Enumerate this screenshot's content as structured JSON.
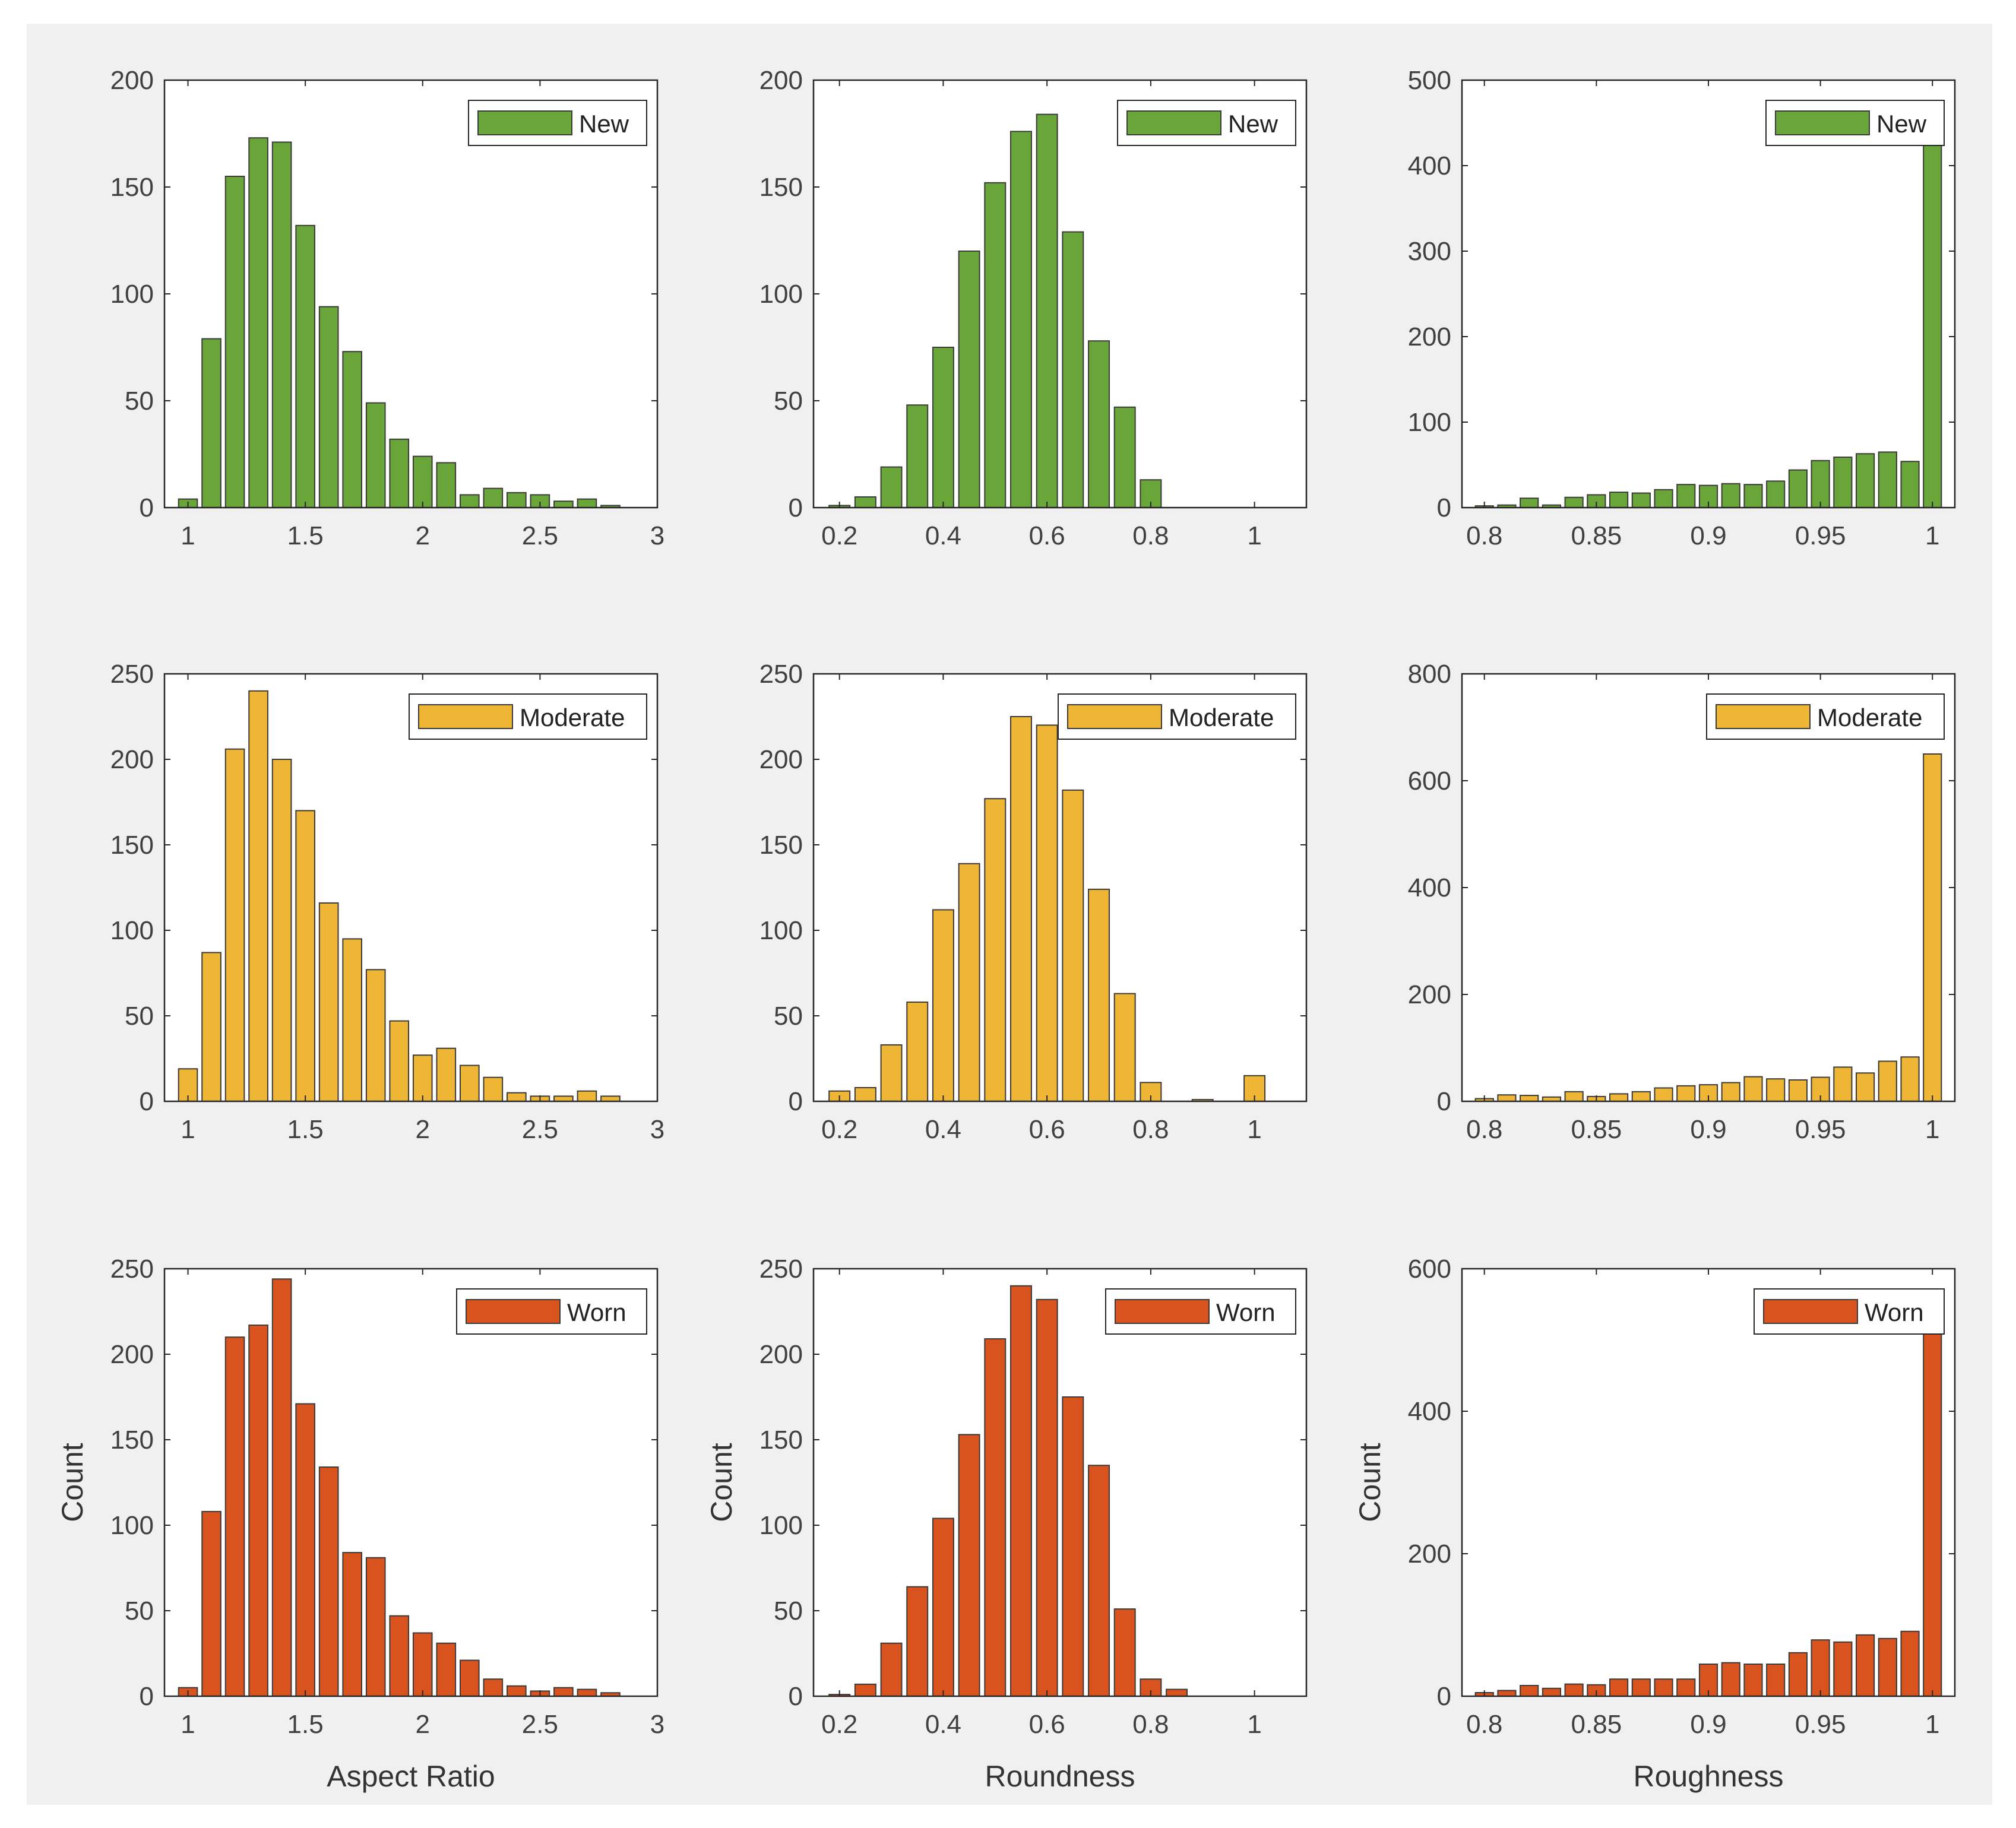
{
  "figure": {
    "background": "#f0f0f0"
  },
  "colors": {
    "new": "#6aa53a",
    "moderate": "#efb534",
    "worn": "#d9531e",
    "edge": "#3a3a3a",
    "axis": "#262626",
    "tick_text": "#404040"
  },
  "chart_data": [
    {
      "id": "ar-new",
      "type": "bar",
      "row": 0,
      "col": 0,
      "legend": "New",
      "legend_position": "top-right",
      "color": "new",
      "xlim": [
        0.9,
        3.0
      ],
      "ylim": [
        0,
        200
      ],
      "xticks": [
        1,
        1.5,
        2,
        2.5,
        3
      ],
      "xtick_labels": [
        "1",
        "1.5",
        "2",
        "2.5",
        "3"
      ],
      "yticks": [
        0,
        50,
        100,
        150,
        200
      ],
      "ytick_labels": [
        "0",
        "50",
        "100",
        "150",
        "200"
      ],
      "bin_width": 0.1,
      "bin_centers": [
        1.0,
        1.1,
        1.2,
        1.3,
        1.4,
        1.5,
        1.6,
        1.7,
        1.8,
        1.9,
        2.0,
        2.1,
        2.2,
        2.3,
        2.4,
        2.5,
        2.6,
        2.7,
        2.8
      ],
      "values": [
        4,
        79,
        155,
        173,
        171,
        132,
        94,
        73,
        49,
        32,
        24,
        21,
        6,
        9,
        7,
        6,
        3,
        4,
        1
      ],
      "xlabel": "",
      "ylabel": ""
    },
    {
      "id": "rd-new",
      "type": "bar",
      "row": 0,
      "col": 1,
      "legend": "New",
      "legend_position": "top-right",
      "color": "new",
      "xlim": [
        0.15,
        1.1
      ],
      "ylim": [
        0,
        200
      ],
      "xticks": [
        0.2,
        0.4,
        0.6,
        0.8,
        1
      ],
      "xtick_labels": [
        "0.2",
        "0.4",
        "0.6",
        "0.8",
        "1"
      ],
      "yticks": [
        0,
        50,
        100,
        150,
        200
      ],
      "ytick_labels": [
        "0",
        "50",
        "100",
        "150",
        "200"
      ],
      "bin_width": 0.05,
      "bin_centers": [
        0.2,
        0.25,
        0.3,
        0.35,
        0.4,
        0.45,
        0.5,
        0.55,
        0.6,
        0.65,
        0.7,
        0.75,
        0.8
      ],
      "values": [
        1,
        5,
        19,
        48,
        75,
        120,
        152,
        176,
        184,
        129,
        78,
        47,
        13
      ],
      "xlabel": "",
      "ylabel": ""
    },
    {
      "id": "rg-new",
      "type": "bar",
      "row": 0,
      "col": 2,
      "legend": "New",
      "legend_position": "top-right",
      "color": "new",
      "xlim": [
        0.79,
        1.01
      ],
      "ylim": [
        0,
        500
      ],
      "xticks": [
        0.8,
        0.85,
        0.9,
        0.95,
        1
      ],
      "xtick_labels": [
        "0.8",
        "0.85",
        "0.9",
        "0.95",
        "1"
      ],
      "yticks": [
        0,
        100,
        200,
        300,
        400,
        500
      ],
      "ytick_labels": [
        "0",
        "100",
        "200",
        "300",
        "400",
        "500"
      ],
      "bin_width": 0.01,
      "bin_centers": [
        0.8,
        0.81,
        0.82,
        0.83,
        0.84,
        0.85,
        0.86,
        0.87,
        0.88,
        0.89,
        0.9,
        0.91,
        0.92,
        0.93,
        0.94,
        0.95,
        0.96,
        0.97,
        0.98,
        0.99,
        1.0
      ],
      "values": [
        2,
        3,
        11,
        3,
        12,
        15,
        18,
        17,
        21,
        27,
        26,
        28,
        27,
        31,
        44,
        55,
        59,
        63,
        65,
        54,
        428
      ],
      "xlabel": "",
      "ylabel": ""
    },
    {
      "id": "ar-mod",
      "type": "bar",
      "row": 1,
      "col": 0,
      "legend": "Moderate",
      "legend_position": "top-right",
      "color": "moderate",
      "xlim": [
        0.9,
        3.0
      ],
      "ylim": [
        0,
        250
      ],
      "xticks": [
        1,
        1.5,
        2,
        2.5,
        3
      ],
      "xtick_labels": [
        "1",
        "1.5",
        "2",
        "2.5",
        "3"
      ],
      "yticks": [
        0,
        50,
        100,
        150,
        200,
        250
      ],
      "ytick_labels": [
        "0",
        "50",
        "100",
        "150",
        "200",
        "250"
      ],
      "bin_width": 0.1,
      "bin_centers": [
        1.0,
        1.1,
        1.2,
        1.3,
        1.4,
        1.5,
        1.6,
        1.7,
        1.8,
        1.9,
        2.0,
        2.1,
        2.2,
        2.3,
        2.4,
        2.5,
        2.6,
        2.7,
        2.8
      ],
      "values": [
        19,
        87,
        206,
        240,
        200,
        170,
        116,
        95,
        77,
        47,
        27,
        31,
        21,
        14,
        5,
        3,
        3,
        6,
        3
      ],
      "xlabel": "",
      "ylabel": ""
    },
    {
      "id": "rd-mod",
      "type": "bar",
      "row": 1,
      "col": 1,
      "legend": "Moderate",
      "legend_position": "top-right",
      "color": "moderate",
      "xlim": [
        0.15,
        1.1
      ],
      "ylim": [
        0,
        250
      ],
      "xticks": [
        0.2,
        0.4,
        0.6,
        0.8,
        1
      ],
      "xtick_labels": [
        "0.2",
        "0.4",
        "0.6",
        "0.8",
        "1"
      ],
      "yticks": [
        0,
        50,
        100,
        150,
        200,
        250
      ],
      "ytick_labels": [
        "0",
        "50",
        "100",
        "150",
        "200",
        "250"
      ],
      "bin_width": 0.05,
      "bin_centers": [
        0.2,
        0.25,
        0.3,
        0.35,
        0.4,
        0.45,
        0.5,
        0.55,
        0.6,
        0.65,
        0.7,
        0.75,
        0.8,
        0.85,
        0.9,
        0.95,
        1.0
      ],
      "values": [
        6,
        8,
        33,
        58,
        112,
        139,
        177,
        225,
        220,
        182,
        124,
        63,
        11,
        0,
        1,
        0,
        15
      ],
      "xlabel": "",
      "ylabel": ""
    },
    {
      "id": "rg-mod",
      "type": "bar",
      "row": 1,
      "col": 2,
      "legend": "Moderate",
      "legend_position": "top-right",
      "color": "moderate",
      "xlim": [
        0.79,
        1.01
      ],
      "ylim": [
        0,
        800
      ],
      "xticks": [
        0.8,
        0.85,
        0.9,
        0.95,
        1
      ],
      "xtick_labels": [
        "0.8",
        "0.85",
        "0.9",
        "0.95",
        "1"
      ],
      "yticks": [
        0,
        200,
        400,
        600,
        800
      ],
      "ytick_labels": [
        "0",
        "200",
        "400",
        "600",
        "800"
      ],
      "bin_width": 0.01,
      "bin_centers": [
        0.8,
        0.81,
        0.82,
        0.83,
        0.84,
        0.85,
        0.86,
        0.87,
        0.88,
        0.89,
        0.9,
        0.91,
        0.92,
        0.93,
        0.94,
        0.95,
        0.96,
        0.97,
        0.98,
        0.99,
        1.0
      ],
      "values": [
        5,
        12,
        11,
        8,
        18,
        9,
        14,
        18,
        25,
        29,
        31,
        35,
        46,
        42,
        40,
        45,
        64,
        53,
        75,
        83,
        650
      ],
      "xlabel": "",
      "ylabel": ""
    },
    {
      "id": "ar-worn",
      "type": "bar",
      "row": 2,
      "col": 0,
      "legend": "Worn",
      "legend_position": "top-right",
      "color": "worn",
      "xlim": [
        0.9,
        3.0
      ],
      "ylim": [
        0,
        250
      ],
      "xticks": [
        1,
        1.5,
        2,
        2.5,
        3
      ],
      "xtick_labels": [
        "1",
        "1.5",
        "2",
        "2.5",
        "3"
      ],
      "yticks": [
        0,
        50,
        100,
        150,
        200,
        250
      ],
      "ytick_labels": [
        "0",
        "50",
        "100",
        "150",
        "200",
        "250"
      ],
      "bin_width": 0.1,
      "bin_centers": [
        1.0,
        1.1,
        1.2,
        1.3,
        1.4,
        1.5,
        1.6,
        1.7,
        1.8,
        1.9,
        2.0,
        2.1,
        2.2,
        2.3,
        2.4,
        2.5,
        2.6,
        2.7,
        2.8
      ],
      "values": [
        5,
        108,
        210,
        217,
        244,
        171,
        134,
        84,
        81,
        47,
        37,
        31,
        21,
        10,
        6,
        3,
        5,
        4,
        2
      ],
      "xlabel": "Aspect Ratio",
      "ylabel": "Count"
    },
    {
      "id": "rd-worn",
      "type": "bar",
      "row": 2,
      "col": 1,
      "legend": "Worn",
      "legend_position": "top-right",
      "color": "worn",
      "xlim": [
        0.15,
        1.1
      ],
      "ylim": [
        0,
        250
      ],
      "xticks": [
        0.2,
        0.4,
        0.6,
        0.8,
        1
      ],
      "xtick_labels": [
        "0.2",
        "0.4",
        "0.6",
        "0.8",
        "1"
      ],
      "yticks": [
        0,
        50,
        100,
        150,
        200,
        250
      ],
      "ytick_labels": [
        "0",
        "50",
        "100",
        "150",
        "200",
        "250"
      ],
      "bin_width": 0.05,
      "bin_centers": [
        0.2,
        0.25,
        0.3,
        0.35,
        0.4,
        0.45,
        0.5,
        0.55,
        0.6,
        0.65,
        0.7,
        0.75,
        0.8,
        0.85
      ],
      "values": [
        1,
        7,
        31,
        64,
        104,
        153,
        209,
        240,
        232,
        175,
        135,
        51,
        10,
        4
      ],
      "xlabel": "Roundness",
      "ylabel": "Count"
    },
    {
      "id": "rg-worn",
      "type": "bar",
      "row": 2,
      "col": 2,
      "legend": "Worn",
      "legend_position": "top-right",
      "color": "worn",
      "xlim": [
        0.79,
        1.01
      ],
      "ylim": [
        0,
        600
      ],
      "xticks": [
        0.8,
        0.85,
        0.9,
        0.95,
        1
      ],
      "xtick_labels": [
        "0.8",
        "0.85",
        "0.9",
        "0.95",
        "1"
      ],
      "yticks": [
        0,
        200,
        400,
        600
      ],
      "ytick_labels": [
        "0",
        "200",
        "400",
        "600"
      ],
      "bin_width": 0.01,
      "bin_centers": [
        0.8,
        0.81,
        0.82,
        0.83,
        0.84,
        0.85,
        0.86,
        0.87,
        0.88,
        0.89,
        0.9,
        0.91,
        0.92,
        0.93,
        0.94,
        0.95,
        0.96,
        0.97,
        0.98,
        0.99,
        1.0
      ],
      "values": [
        5,
        8,
        15,
        11,
        17,
        16,
        24,
        24,
        24,
        24,
        45,
        47,
        45,
        45,
        61,
        79,
        76,
        86,
        81,
        91,
        533
      ],
      "xlabel": "Roughness",
      "ylabel": "Count"
    }
  ]
}
